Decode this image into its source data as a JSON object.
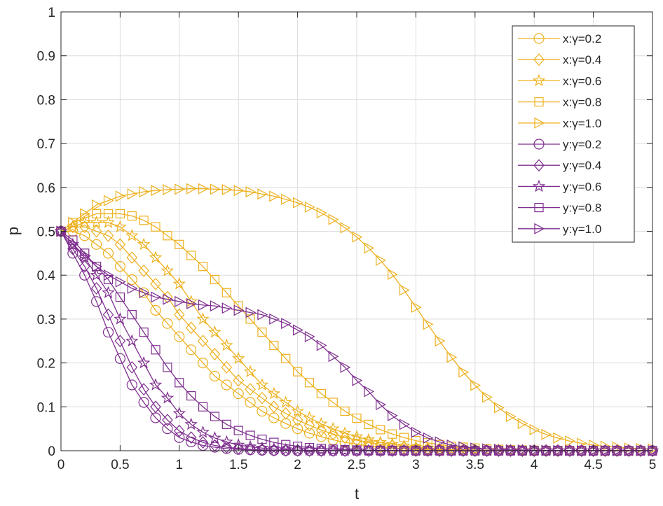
{
  "chart_data": {
    "type": "line",
    "title": "",
    "xlabel": "t",
    "ylabel": "p",
    "xlim": [
      0,
      5
    ],
    "ylim": [
      0,
      1
    ],
    "x_ticks": [
      "0",
      "0.5",
      "1",
      "1.5",
      "2",
      "2.5",
      "3",
      "3.5",
      "4",
      "4.5",
      "5"
    ],
    "y_ticks": [
      "0",
      "0.1",
      "0.2",
      "0.3",
      "0.4",
      "0.5",
      "0.6",
      "0.7",
      "0.8",
      "0.9",
      "1"
    ],
    "grid": true,
    "legend_position": "top-right",
    "x": [
      0,
      0.1,
      0.2,
      0.3,
      0.4,
      0.5,
      0.6,
      0.7,
      0.8,
      0.9,
      1,
      1.1,
      1.2,
      1.3,
      1.4,
      1.5,
      1.6,
      1.7,
      1.8,
      1.9,
      2,
      2.1,
      2.2,
      2.3,
      2.4,
      2.5,
      2.6,
      2.7,
      2.8,
      2.9,
      3,
      3.1,
      3.2,
      3.3,
      3.4,
      3.5,
      3.6,
      3.7,
      3.8,
      3.9,
      4,
      4.1,
      4.2,
      4.3,
      4.4,
      4.5,
      4.6,
      4.7,
      4.8,
      4.9,
      5
    ],
    "series": [
      {
        "name": "x:γ=0.2",
        "color": "#EDB120",
        "marker": "circle",
        "values": [
          0.5,
          0.5,
          0.49,
          0.47,
          0.45,
          0.42,
          0.39,
          0.36,
          0.32,
          0.29,
          0.26,
          0.23,
          0.2,
          0.17,
          0.15,
          0.13,
          0.11,
          0.09,
          0.075,
          0.062,
          0.05,
          0.04,
          0.032,
          0.025,
          0.019,
          0.015,
          0.011,
          0.008,
          0.006,
          0.004,
          0.003,
          0.002,
          0.0015,
          0.001,
          0.0008,
          0.0006,
          0.0005,
          0.0004,
          0.0003,
          0.0002,
          0.0002,
          0.0001,
          0.0001,
          0.0001,
          0,
          0,
          0,
          0,
          0,
          0,
          0
        ]
      },
      {
        "name": "x:γ=0.4",
        "color": "#EDB120",
        "marker": "diamond",
        "values": [
          0.5,
          0.51,
          0.51,
          0.5,
          0.49,
          0.47,
          0.44,
          0.41,
          0.38,
          0.35,
          0.31,
          0.28,
          0.25,
          0.22,
          0.19,
          0.16,
          0.14,
          0.12,
          0.1,
          0.085,
          0.07,
          0.058,
          0.047,
          0.038,
          0.03,
          0.024,
          0.019,
          0.015,
          0.011,
          0.008,
          0.006,
          0.004,
          0.003,
          0.002,
          0.0015,
          0.001,
          0.0008,
          0.0006,
          0.0004,
          0.0003,
          0.0002,
          0.0002,
          0.0001,
          0.0001,
          0,
          0,
          0,
          0,
          0,
          0,
          0
        ]
      },
      {
        "name": "x:γ=0.6",
        "color": "#EDB120",
        "marker": "star",
        "values": [
          0.5,
          0.51,
          0.52,
          0.52,
          0.52,
          0.51,
          0.49,
          0.47,
          0.44,
          0.41,
          0.38,
          0.34,
          0.3,
          0.27,
          0.24,
          0.21,
          0.18,
          0.15,
          0.13,
          0.11,
          0.09,
          0.075,
          0.061,
          0.05,
          0.04,
          0.032,
          0.025,
          0.019,
          0.015,
          0.011,
          0.008,
          0.006,
          0.004,
          0.003,
          0.002,
          0.0015,
          0.001,
          0.0008,
          0.0006,
          0.0004,
          0.0003,
          0.0002,
          0.0002,
          0.0001,
          0.0001,
          0,
          0,
          0,
          0,
          0,
          0
        ]
      },
      {
        "name": "x:γ=0.8",
        "color": "#EDB120",
        "marker": "square",
        "values": [
          0.5,
          0.52,
          0.53,
          0.54,
          0.54,
          0.54,
          0.535,
          0.525,
          0.51,
          0.49,
          0.47,
          0.445,
          0.42,
          0.39,
          0.36,
          0.33,
          0.3,
          0.27,
          0.24,
          0.21,
          0.18,
          0.155,
          0.13,
          0.11,
          0.09,
          0.074,
          0.06,
          0.048,
          0.038,
          0.03,
          0.023,
          0.018,
          0.014,
          0.01,
          0.008,
          0.006,
          0.004,
          0.003,
          0.002,
          0.0015,
          0.001,
          0.0008,
          0.0006,
          0.0004,
          0.0003,
          0.0002,
          0.0001,
          0.0001,
          0,
          0,
          0
        ]
      },
      {
        "name": "x:γ=1.0",
        "color": "#EDB120",
        "marker": "triangle-right",
        "values": [
          0.5,
          0.52,
          0.54,
          0.56,
          0.57,
          0.58,
          0.585,
          0.59,
          0.593,
          0.595,
          0.596,
          0.597,
          0.597,
          0.596,
          0.595,
          0.593,
          0.59,
          0.585,
          0.58,
          0.573,
          0.565,
          0.555,
          0.542,
          0.527,
          0.508,
          0.487,
          0.462,
          0.434,
          0.402,
          0.366,
          0.327,
          0.288,
          0.25,
          0.213,
          0.179,
          0.149,
          0.122,
          0.098,
          0.078,
          0.062,
          0.048,
          0.037,
          0.029,
          0.022,
          0.017,
          0.013,
          0.01,
          0.008,
          0.006,
          0.005,
          0.004
        ]
      },
      {
        "name": "y:γ=0.2",
        "color": "#7E2F8E",
        "marker": "circle",
        "values": [
          0.5,
          0.45,
          0.4,
          0.34,
          0.27,
          0.21,
          0.15,
          0.11,
          0.075,
          0.05,
          0.03,
          0.02,
          0.012,
          0.008,
          0.005,
          0.003,
          0.002,
          0.001,
          0.0005,
          0.0003,
          0.0002,
          0.0001,
          0,
          0,
          0,
          0,
          0,
          0,
          0,
          0,
          0,
          0,
          0,
          0,
          0,
          0,
          0,
          0,
          0,
          0,
          0,
          0,
          0,
          0,
          0,
          0,
          0,
          0,
          0,
          0,
          0
        ]
      },
      {
        "name": "y:γ=0.4",
        "color": "#7E2F8E",
        "marker": "diamond",
        "values": [
          0.5,
          0.46,
          0.42,
          0.37,
          0.31,
          0.25,
          0.19,
          0.14,
          0.1,
          0.07,
          0.045,
          0.03,
          0.019,
          0.012,
          0.008,
          0.005,
          0.003,
          0.002,
          0.001,
          0.0006,
          0.0004,
          0.0002,
          0.0001,
          0,
          0,
          0,
          0,
          0,
          0,
          0,
          0,
          0,
          0,
          0,
          0,
          0,
          0,
          0,
          0,
          0,
          0,
          0,
          0,
          0,
          0,
          0,
          0,
          0,
          0,
          0,
          0
        ]
      },
      {
        "name": "y:γ=0.6",
        "color": "#7E2F8E",
        "marker": "star",
        "values": [
          0.5,
          0.47,
          0.44,
          0.4,
          0.36,
          0.3,
          0.25,
          0.2,
          0.15,
          0.12,
          0.085,
          0.06,
          0.042,
          0.029,
          0.02,
          0.013,
          0.009,
          0.006,
          0.004,
          0.0025,
          0.0015,
          0.001,
          0.0006,
          0.0004,
          0.0002,
          0.0001,
          0,
          0,
          0,
          0,
          0,
          0,
          0,
          0,
          0,
          0,
          0,
          0,
          0,
          0,
          0,
          0,
          0,
          0,
          0,
          0,
          0,
          0,
          0,
          0,
          0
        ]
      },
      {
        "name": "y:γ=0.8",
        "color": "#7E2F8E",
        "marker": "square",
        "values": [
          0.5,
          0.48,
          0.45,
          0.42,
          0.39,
          0.35,
          0.31,
          0.27,
          0.23,
          0.19,
          0.155,
          0.125,
          0.1,
          0.078,
          0.06,
          0.046,
          0.035,
          0.026,
          0.019,
          0.014,
          0.01,
          0.007,
          0.005,
          0.0035,
          0.0024,
          0.0016,
          0.0011,
          0.0007,
          0.0005,
          0.0003,
          0.0002,
          0.0001,
          0,
          0,
          0,
          0,
          0,
          0,
          0,
          0,
          0,
          0,
          0,
          0,
          0,
          0,
          0,
          0,
          0,
          0,
          0
        ]
      },
      {
        "name": "y:γ=1.0",
        "color": "#7E2F8E",
        "marker": "triangle-right",
        "values": [
          0.5,
          0.47,
          0.445,
          0.42,
          0.4,
          0.385,
          0.37,
          0.36,
          0.35,
          0.345,
          0.34,
          0.335,
          0.332,
          0.33,
          0.325,
          0.32,
          0.315,
          0.31,
          0.3,
          0.29,
          0.275,
          0.26,
          0.24,
          0.215,
          0.19,
          0.16,
          0.135,
          0.105,
          0.08,
          0.06,
          0.042,
          0.029,
          0.02,
          0.013,
          0.009,
          0.006,
          0.004,
          0.003,
          0.002,
          0.0015,
          0.001,
          0.0007,
          0.0005,
          0.0003,
          0.0002,
          0.0001,
          0,
          0,
          0,
          0,
          0
        ]
      }
    ]
  }
}
